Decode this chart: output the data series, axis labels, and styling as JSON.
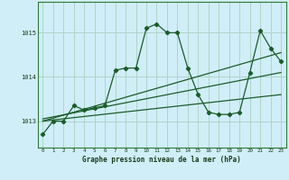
{
  "xlabel": "Graphe pression niveau de la mer (hPa)",
  "bg_color": "#d0eef8",
  "grid_color": "#b0d4c8",
  "line_color": "#1a5c2a",
  "xlim": [
    -0.5,
    23.5
  ],
  "ylim": [
    1012.4,
    1015.7
  ],
  "yticks": [
    1013,
    1014,
    1015
  ],
  "xticks": [
    0,
    1,
    2,
    3,
    4,
    5,
    6,
    7,
    8,
    9,
    10,
    11,
    12,
    13,
    14,
    15,
    16,
    17,
    18,
    19,
    20,
    21,
    22,
    23
  ],
  "series1_x": [
    0,
    1,
    2,
    3,
    4,
    5,
    6,
    7,
    8,
    9,
    10,
    11,
    12,
    13,
    14,
    15,
    16,
    17,
    18,
    19,
    20,
    21,
    22,
    23
  ],
  "series1_y": [
    1012.7,
    1013.0,
    1013.0,
    1013.35,
    1013.25,
    1013.3,
    1013.35,
    1014.15,
    1014.2,
    1014.2,
    1015.1,
    1015.2,
    1015.0,
    1015.0,
    1014.2,
    1013.6,
    1013.2,
    1013.15,
    1013.15,
    1013.2,
    1014.1,
    1015.05,
    1014.65,
    1014.35
  ],
  "series2_x": [
    0,
    23
  ],
  "series2_y": [
    1013.0,
    1013.6
  ],
  "series3_x": [
    0,
    23
  ],
  "series3_y": [
    1013.05,
    1014.1
  ],
  "series4_x": [
    0,
    23
  ],
  "series4_y": [
    1013.0,
    1014.55
  ]
}
